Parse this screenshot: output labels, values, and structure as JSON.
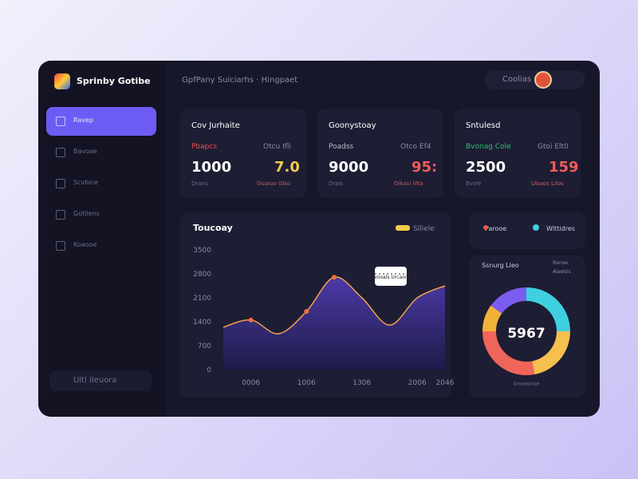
{
  "brand": "Sprinby Gotibe",
  "header": {
    "title": "GpfPany Suiciarhs · Hingpaet",
    "user": "Coolias"
  },
  "sidebar": {
    "items": [
      "Ravep",
      "Bavoae",
      "Scvbice",
      "Gotliens",
      "Koaooe"
    ],
    "footer": "Ultl Ileuora"
  },
  "cards": [
    {
      "title": "Cov Jurhaite",
      "left_label": "Pbapcs",
      "right_label": "Otcu Ifli",
      "value": "1000",
      "secondary": "7.0",
      "left_note": "Drans",
      "right_note": "Guaiuo Glso",
      "accent": "#f2c94c",
      "label_color": "#e4574e"
    },
    {
      "title": "Goonystoay",
      "left_label": "Poadss",
      "right_label": "Otco Ef4",
      "value": "9000",
      "secondary": "95:",
      "left_note": "Drais",
      "right_note": "Oikasi lilta",
      "accent": "#ef5b5b",
      "label_color": "#b9bccb"
    },
    {
      "title": "Sntulesd",
      "left_label": "Bvonag Cole",
      "right_label": "Gtoi Elt0",
      "value": "2500",
      "secondary": "159",
      "left_note": "Bvole",
      "right_note": "Uisaos Lilos",
      "accent": "#ef5b5b",
      "label_color": "#2fbf71"
    }
  ],
  "area_chart": {
    "title": "Toucoay",
    "legend": "Slliele",
    "callout": "Sanoals Urcaoits",
    "categories": [
      null,
      "0006",
      null,
      "1006",
      null,
      "1306",
      null,
      "2006",
      "2046"
    ],
    "values": [
      1240,
      1450,
      1050,
      1700,
      2700,
      2100,
      1300,
      2100,
      2450
    ],
    "ylim": [
      0,
      3500
    ],
    "yticks": [
      0,
      700,
      1400,
      2100,
      2800,
      3500
    ],
    "color": "#4b3aa6",
    "line_color": "#f0a050",
    "legend_color": "#f2c94c"
  },
  "donut": {
    "center": "5967",
    "title": "Ssnurg Lleo",
    "tabs": [
      "Parooe",
      "Wlttidres"
    ],
    "legend": [
      "Itenoe",
      "Alaelsis"
    ],
    "footer": "Iinoeorae",
    "values": [
      25,
      22,
      28,
      10,
      15
    ],
    "colors": [
      "#3fd0e0",
      "#f5c04e",
      "#f0655a",
      "#f2b23a",
      "#7b5cf0"
    ]
  }
}
